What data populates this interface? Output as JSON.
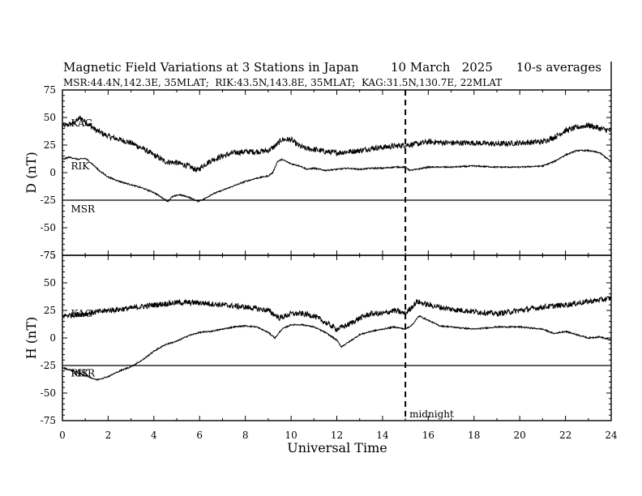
{
  "chart_data": {
    "type": "line",
    "title": "Magnetic Field Variations at 3 Stations in Japan",
    "date": "10 March   2025",
    "averaging": "10-s averages",
    "subtitle": "MSR:44.4N,142.3E, 35MLAT;  RIK:43.5N,143.8E, 35MLAT;  KAG:31.5N,130.7E, 22MLAT",
    "xlabel": "Universal Time",
    "xlim": [
      0,
      24
    ],
    "x_ticks": [
      "0",
      "2",
      "4",
      "6",
      "8",
      "10",
      "12",
      "14",
      "16",
      "18",
      "20",
      "22",
      "24"
    ],
    "midnight": {
      "x": 15,
      "label": "midnight"
    },
    "panels": [
      {
        "id": "D",
        "ylabel": "D (nT)",
        "ylim": [
          -75,
          75
        ],
        "y_ticks": [
          "75",
          "50",
          "25",
          "0",
          "-25",
          "-50",
          "-75"
        ],
        "series": [
          {
            "name": "KAG",
            "label_at": [
              0.3,
              45
            ],
            "noise": 2.5,
            "points": [
              [
                0,
                42
              ],
              [
                0.5,
                45
              ],
              [
                0.8,
                50
              ],
              [
                1,
                46
              ],
              [
                1.5,
                38
              ],
              [
                2,
                33
              ],
              [
                2.5,
                30
              ],
              [
                3,
                27
              ],
              [
                3.5,
                22
              ],
              [
                4,
                16
              ],
              [
                4.5,
                10
              ],
              [
                5,
                9
              ],
              [
                5.5,
                6
              ],
              [
                5.9,
                2
              ],
              [
                6.2,
                7
              ],
              [
                6.5,
                11
              ],
              [
                7,
                15
              ],
              [
                7.5,
                18
              ],
              [
                8,
                19
              ],
              [
                8.5,
                19
              ],
              [
                9,
                20
              ],
              [
                9.3,
                24
              ],
              [
                9.6,
                30
              ],
              [
                10,
                30
              ],
              [
                10.3,
                25
              ],
              [
                10.6,
                22
              ],
              [
                11,
                21
              ],
              [
                11.5,
                19
              ],
              [
                12,
                18
              ],
              [
                12.5,
                19
              ],
              [
                13,
                20
              ],
              [
                13.5,
                22
              ],
              [
                14,
                23
              ],
              [
                14.5,
                24
              ],
              [
                15,
                25
              ],
              [
                15.5,
                26
              ],
              [
                16,
                28
              ],
              [
                17,
                27
              ],
              [
                18,
                27
              ],
              [
                19,
                26
              ],
              [
                20,
                27
              ],
              [
                21,
                28
              ],
              [
                21.5,
                32
              ],
              [
                22,
                38
              ],
              [
                22.5,
                41
              ],
              [
                23,
                43
              ],
              [
                23.5,
                40
              ],
              [
                24,
                38
              ]
            ]
          },
          {
            "name": "RIK",
            "label_at": [
              0.3,
              6
            ],
            "noise": 0.6,
            "points": [
              [
                0,
                12
              ],
              [
                0.3,
                14
              ],
              [
                0.7,
                12
              ],
              [
                1,
                13
              ],
              [
                1.3,
                8
              ],
              [
                1.6,
                2
              ],
              [
                2,
                -4
              ],
              [
                2.5,
                -8
              ],
              [
                3,
                -11
              ],
              [
                3.5,
                -14
              ],
              [
                4,
                -18
              ],
              [
                4.3,
                -22
              ],
              [
                4.6,
                -26
              ],
              [
                4.8,
                -22
              ],
              [
                5.1,
                -20
              ],
              [
                5.5,
                -22
              ],
              [
                5.9,
                -26
              ],
              [
                6.2,
                -24
              ],
              [
                6.5,
                -20
              ],
              [
                7,
                -16
              ],
              [
                7.5,
                -12
              ],
              [
                8,
                -8
              ],
              [
                8.5,
                -5
              ],
              [
                9,
                -3
              ],
              [
                9.2,
                0
              ],
              [
                9.4,
                10
              ],
              [
                9.6,
                12
              ],
              [
                10,
                8
              ],
              [
                10.4,
                6
              ],
              [
                10.7,
                3
              ],
              [
                11,
                4
              ],
              [
                11.5,
                2
              ],
              [
                12,
                3
              ],
              [
                12.5,
                4
              ],
              [
                13,
                3
              ],
              [
                13.5,
                4
              ],
              [
                14,
                4
              ],
              [
                14.5,
                5
              ],
              [
                15,
                5
              ],
              [
                15.2,
                2
              ],
              [
                15.5,
                3
              ],
              [
                16,
                5
              ],
              [
                17,
                5
              ],
              [
                18,
                6
              ],
              [
                19,
                5
              ],
              [
                20,
                5
              ],
              [
                21,
                6
              ],
              [
                21.5,
                10
              ],
              [
                22,
                16
              ],
              [
                22.5,
                20
              ],
              [
                23,
                20
              ],
              [
                23.5,
                18
              ],
              [
                24,
                10
              ]
            ]
          },
          {
            "name": "MSR",
            "label_at": [
              0.3,
              -33
            ],
            "noise": 0,
            "points": [
              [
                0,
                -25
              ],
              [
                24,
                -25
              ]
            ]
          }
        ]
      },
      {
        "id": "H",
        "ylabel": "H (nT)",
        "ylim": [
          -75,
          75
        ],
        "y_ticks": [
          "75",
          "50",
          "25",
          "0",
          "-25",
          "-50",
          "-75"
        ],
        "series": [
          {
            "name": "KAG",
            "label_at": [
              0.3,
              22
            ],
            "noise": 2.5,
            "points": [
              [
                0,
                20
              ],
              [
                1,
                22
              ],
              [
                2,
                25
              ],
              [
                3,
                27
              ],
              [
                4,
                30
              ],
              [
                5,
                32
              ],
              [
                6,
                32
              ],
              [
                7,
                30
              ],
              [
                8,
                28
              ],
              [
                9,
                25
              ],
              [
                9.5,
                18
              ],
              [
                10,
                22
              ],
              [
                10.5,
                22
              ],
              [
                11,
                20
              ],
              [
                11.5,
                14
              ],
              [
                12,
                8
              ],
              [
                12.5,
                12
              ],
              [
                13,
                18
              ],
              [
                13.5,
                22
              ],
              [
                14,
                22
              ],
              [
                14.5,
                25
              ],
              [
                15,
                22
              ],
              [
                15.5,
                33
              ],
              [
                16,
                30
              ],
              [
                17,
                26
              ],
              [
                18,
                24
              ],
              [
                19,
                22
              ],
              [
                20,
                25
              ],
              [
                21,
                28
              ],
              [
                22,
                30
              ],
              [
                23,
                33
              ],
              [
                24,
                36
              ]
            ]
          },
          {
            "name": "RIK",
            "label_at": [
              0.3,
              -32
            ],
            "noise": 0.6,
            "points": [
              [
                0,
                -27
              ],
              [
                0.5,
                -30
              ],
              [
                1,
                -34
              ],
              [
                1.5,
                -38
              ],
              [
                2,
                -35
              ],
              [
                2.5,
                -30
              ],
              [
                3,
                -26
              ],
              [
                3.5,
                -20
              ],
              [
                4,
                -12
              ],
              [
                4.5,
                -6
              ],
              [
                5,
                -3
              ],
              [
                5.5,
                2
              ],
              [
                6,
                5
              ],
              [
                6.5,
                6
              ],
              [
                7,
                8
              ],
              [
                7.5,
                10
              ],
              [
                8,
                11
              ],
              [
                8.5,
                10
              ],
              [
                9,
                5
              ],
              [
                9.3,
                0
              ],
              [
                9.6,
                8
              ],
              [
                10,
                12
              ],
              [
                10.5,
                12
              ],
              [
                11,
                10
              ],
              [
                11.5,
                5
              ],
              [
                12,
                -2
              ],
              [
                12.2,
                -8
              ],
              [
                12.5,
                -4
              ],
              [
                13,
                3
              ],
              [
                13.5,
                6
              ],
              [
                14,
                8
              ],
              [
                14.5,
                10
              ],
              [
                15,
                8
              ],
              [
                15.3,
                12
              ],
              [
                15.6,
                20
              ],
              [
                16,
                16
              ],
              [
                16.5,
                11
              ],
              [
                17,
                10
              ],
              [
                18,
                8
              ],
              [
                19,
                10
              ],
              [
                20,
                10
              ],
              [
                21,
                8
              ],
              [
                21.5,
                4
              ],
              [
                22,
                6
              ],
              [
                22.5,
                3
              ],
              [
                23,
                0
              ],
              [
                23.5,
                1
              ],
              [
                24,
                -2
              ]
            ]
          },
          {
            "name": "MSR",
            "label_at": [
              0.3,
              -32
            ],
            "noise": 0,
            "points": [
              [
                0,
                -25
              ],
              [
                24,
                -25
              ]
            ]
          }
        ]
      }
    ]
  }
}
